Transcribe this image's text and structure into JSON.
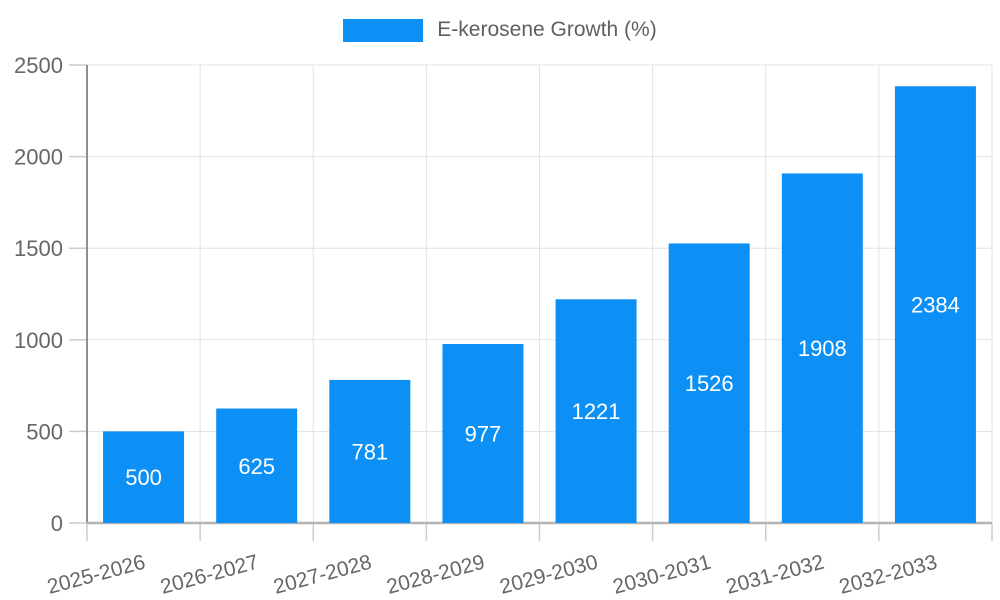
{
  "chart_data": {
    "type": "bar",
    "title": "E-kerosene Growth (%)",
    "categories": [
      "2025-2026",
      "2026-2027",
      "2027-2028",
      "2028-2029",
      "2029-2030",
      "2030-2031",
      "2031-2032",
      "2032-2033"
    ],
    "values": [
      500,
      625,
      781,
      977,
      1221,
      1526,
      1908,
      2384
    ],
    "xlabel": "",
    "ylabel": "",
    "ylim": [
      0,
      2500
    ],
    "yticks": [
      0,
      500,
      1000,
      1500,
      2000,
      2500
    ],
    "grid": true,
    "legend_position": "top-center",
    "bar_color": "#0d90f5",
    "value_label_color": "#ffffff",
    "colors": {
      "grid": "#e3e3e3",
      "tick": "#cccccc",
      "y_axis": "#8f8f8f",
      "x_axis": "#b3b3b3",
      "text": "#666666"
    }
  }
}
